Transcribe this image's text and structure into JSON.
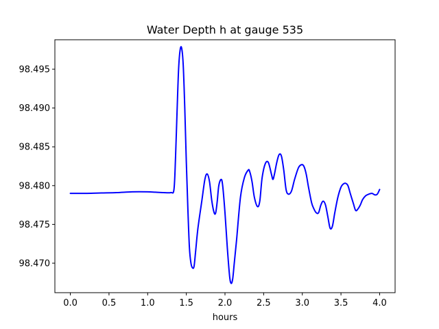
{
  "chart_data": {
    "type": "line",
    "title": "Water Depth h at gauge 535",
    "xlabel": "hours",
    "ylabel": "",
    "xlim": [
      -0.2,
      4.2
    ],
    "ylim": [
      98.4662,
      98.4988
    ],
    "xticks": [
      0.0,
      0.5,
      1.0,
      1.5,
      2.0,
      2.5,
      3.0,
      3.5,
      4.0
    ],
    "xtick_labels": [
      "0.0",
      "0.5",
      "1.0",
      "1.5",
      "2.0",
      "2.5",
      "3.0",
      "3.5",
      "4.0"
    ],
    "yticks": [
      98.47,
      98.475,
      98.48,
      98.485,
      98.49,
      98.495
    ],
    "ytick_labels": [
      "98.470",
      "98.475",
      "98.480",
      "98.485",
      "98.490",
      "98.495"
    ],
    "grid": false,
    "legend": "none",
    "series": [
      {
        "color": "#0000ff",
        "x": [
          0.0,
          0.2,
          0.4,
          0.6,
          0.8,
          1.0,
          1.1,
          1.2,
          1.3,
          1.34,
          1.36,
          1.38,
          1.4,
          1.42,
          1.44,
          1.46,
          1.48,
          1.5,
          1.52,
          1.54,
          1.56,
          1.58,
          1.6,
          1.62,
          1.65,
          1.7,
          1.74,
          1.77,
          1.8,
          1.83,
          1.86,
          1.88,
          1.9,
          1.92,
          1.95,
          1.97,
          2.0,
          2.03,
          2.06,
          2.08,
          2.1,
          2.12,
          2.15,
          2.2,
          2.25,
          2.3,
          2.32,
          2.35,
          2.38,
          2.42,
          2.45,
          2.48,
          2.52,
          2.56,
          2.6,
          2.62,
          2.64,
          2.67,
          2.7,
          2.73,
          2.76,
          2.79,
          2.82,
          2.86,
          2.9,
          2.95,
          2.99,
          3.02,
          3.05,
          3.08,
          3.12,
          3.15,
          3.18,
          3.21,
          3.24,
          3.27,
          3.3,
          3.33,
          3.36,
          3.39,
          3.42,
          3.46,
          3.5,
          3.53,
          3.56,
          3.59,
          3.62,
          3.66,
          3.69,
          3.72,
          3.75,
          3.78,
          3.82,
          3.86,
          3.9,
          3.94,
          3.97,
          4.0
        ],
        "y": [
          98.479,
          98.479,
          98.47905,
          98.4791,
          98.4792,
          98.4792,
          98.47915,
          98.4791,
          98.4791,
          98.4795,
          98.4835,
          98.4895,
          98.495,
          98.4975,
          98.4977,
          98.4955,
          98.49,
          98.483,
          98.477,
          98.472,
          98.47,
          98.4694,
          98.4696,
          98.4715,
          98.4745,
          98.478,
          98.4808,
          98.4815,
          98.4805,
          98.478,
          98.4765,
          98.4765,
          98.478,
          98.48,
          98.4808,
          98.48,
          98.4765,
          98.472,
          98.4683,
          98.4674,
          98.468,
          98.47,
          98.473,
          98.4785,
          98.481,
          98.482,
          98.4818,
          98.4805,
          98.4785,
          98.4773,
          98.478,
          98.481,
          98.4828,
          98.483,
          98.4815,
          98.4808,
          98.4815,
          98.483,
          98.484,
          98.4838,
          98.482,
          98.4795,
          98.4789,
          98.4793,
          98.4808,
          98.4823,
          98.4827,
          98.4825,
          98.4815,
          98.4798,
          98.4778,
          98.477,
          98.4765,
          98.4765,
          98.4775,
          98.478,
          98.4775,
          98.476,
          98.4745,
          98.4748,
          98.4765,
          98.4785,
          98.4798,
          98.4802,
          98.4803,
          98.48,
          98.479,
          98.4777,
          98.4768,
          98.477,
          98.4775,
          98.4782,
          98.4787,
          98.4789,
          98.479,
          98.4788,
          98.4789,
          98.4795
        ]
      }
    ]
  }
}
